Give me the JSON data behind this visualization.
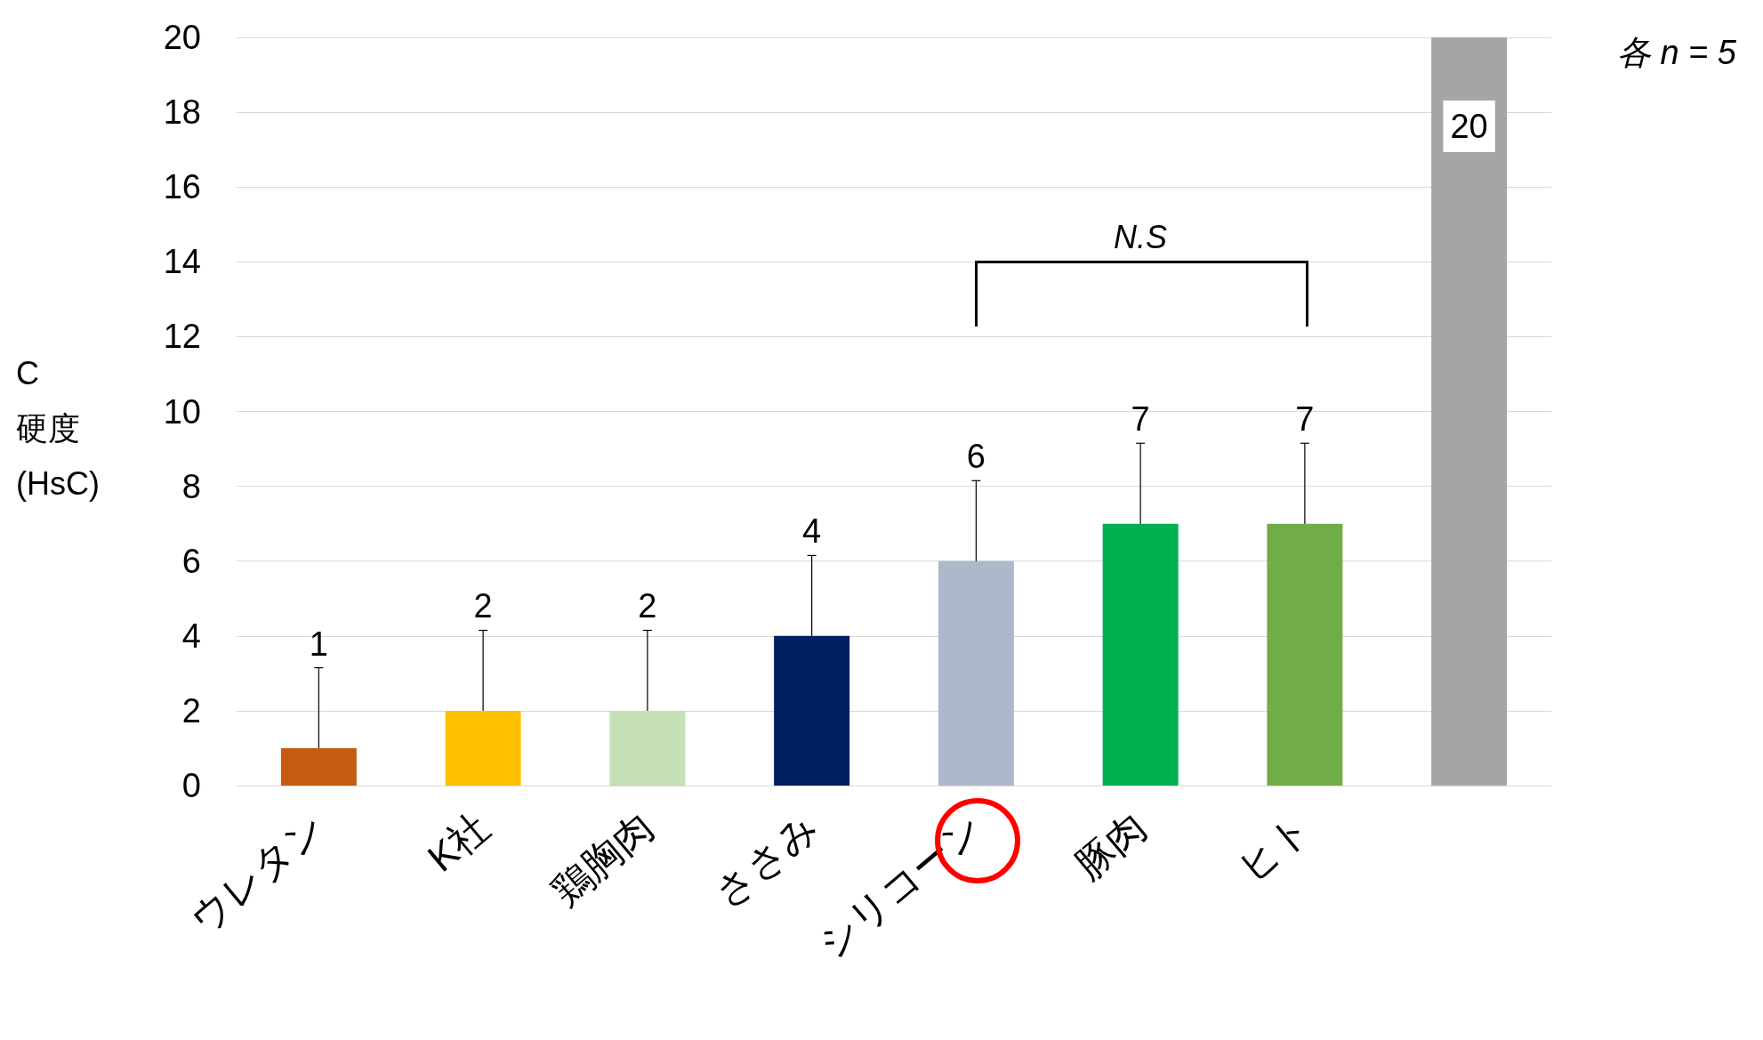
{
  "chart_data": {
    "type": "bar",
    "categories": [
      "ウレタン",
      "K社",
      "鶏胸肉",
      "ささみ",
      "シリコーン",
      "豚肉",
      "ヒト",
      null
    ],
    "values": [
      1,
      2,
      2,
      4,
      6,
      7,
      7,
      20
    ],
    "colors": [
      "#c55a11",
      "#ffc000",
      "#c5e0b4",
      "#002060",
      "#adb9ca",
      "#00b050",
      "#70ad47",
      "#a5a5a5"
    ],
    "errors": [
      [
        1,
        3.15
      ],
      [
        2,
        4.15
      ],
      [
        2,
        4.15
      ],
      [
        4,
        6.15
      ],
      [
        6,
        8.15
      ],
      [
        7,
        9.15
      ],
      [
        7,
        9.15
      ],
      null
    ],
    "ylabel": "C 硬度 (HsC)",
    "ylim": [
      0,
      20
    ],
    "yticks": [
      0,
      2,
      4,
      6,
      8,
      10,
      12,
      14,
      16,
      18,
      20
    ],
    "grid": "y",
    "data_labels": true,
    "annotations": [
      "N.S",
      "各 n = 5"
    ]
  }
}
